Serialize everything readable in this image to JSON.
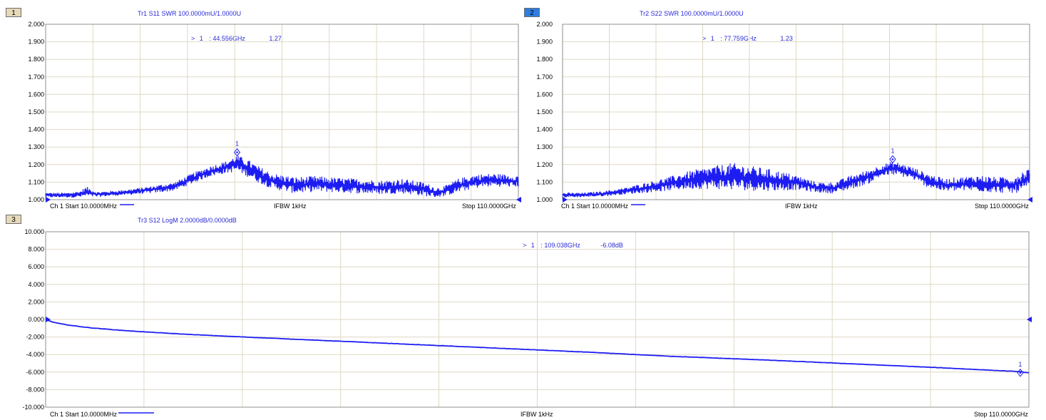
{
  "colors": {
    "trace": "#1d1df2",
    "grid": "#ded8c4",
    "frame": "#8f8f8f",
    "text_blue": "#2a2ad8"
  },
  "footers": {
    "start": "Ch 1 Start 10.0000MHz",
    "ifbw": "IFBW 1kHz",
    "stop": "Stop 110.0000GHz"
  },
  "chart_data": [
    {
      "type": "line",
      "channel_tag": "1",
      "title": "Tr1 S11 SWR 100.0000mU/1.0000U",
      "x_unit": "GHz",
      "xlim": [
        0.01,
        110.0
      ],
      "ylim": [
        1.0,
        2.0
      ],
      "yticks": [
        "2.000",
        "1.900",
        "1.800",
        "1.700",
        "1.600",
        "1.500",
        "1.400",
        "1.300",
        "1.200",
        "1.100",
        "1.000"
      ],
      "grid": true,
      "marker": {
        "id": "1",
        "arrow": ">",
        "freq": "44.556GHz",
        "value": "1.27",
        "x": 44.556,
        "y": 1.27
      },
      "envelope": {
        "x": [
          0,
          5,
          8,
          9.5,
          12,
          18,
          24,
          30,
          34,
          38,
          42,
          44.5,
          47,
          50,
          53,
          58,
          63,
          68,
          73,
          78,
          83,
          88,
          91,
          93,
          96,
          100,
          104,
          110
        ],
        "low": [
          1.012,
          1.012,
          1.012,
          1.015,
          1.015,
          1.025,
          1.035,
          1.05,
          1.09,
          1.13,
          1.15,
          1.16,
          1.13,
          1.09,
          1.06,
          1.035,
          1.045,
          1.04,
          1.035,
          1.03,
          1.035,
          1.02,
          1.012,
          1.02,
          1.04,
          1.065,
          1.075,
          1.07
        ],
        "high": [
          1.04,
          1.04,
          1.05,
          1.075,
          1.045,
          1.055,
          1.075,
          1.1,
          1.15,
          1.19,
          1.22,
          1.255,
          1.23,
          1.185,
          1.15,
          1.13,
          1.135,
          1.125,
          1.12,
          1.11,
          1.12,
          1.1,
          1.07,
          1.08,
          1.12,
          1.145,
          1.15,
          1.14
        ]
      }
    },
    {
      "type": "line",
      "channel_tag": "2",
      "title": "Tr2 S22 SWR 100.0000mU/1.0000U",
      "x_unit": "GHz",
      "xlim": [
        0.01,
        110.0
      ],
      "ylim": [
        1.0,
        2.0
      ],
      "yticks": [
        "2.000",
        "1.900",
        "1.800",
        "1.700",
        "1.600",
        "1.500",
        "1.400",
        "1.300",
        "1.200",
        "1.100",
        "1.000"
      ],
      "grid": true,
      "marker": {
        "id": "1",
        "arrow": ">",
        "freq": "77.759GHz",
        "value": "1.23",
        "x": 77.759,
        "y": 1.23
      },
      "envelope": {
        "x": [
          0,
          5,
          10,
          15,
          20,
          25,
          30,
          35,
          40,
          45,
          50,
          55,
          60,
          64,
          68,
          72,
          75,
          78,
          82,
          86,
          90,
          94,
          98,
          102,
          106,
          110
        ],
        "low": [
          1.012,
          1.014,
          1.02,
          1.03,
          1.04,
          1.05,
          1.06,
          1.06,
          1.055,
          1.05,
          1.05,
          1.055,
          1.04,
          1.035,
          1.06,
          1.09,
          1.13,
          1.14,
          1.12,
          1.07,
          1.045,
          1.05,
          1.045,
          1.04,
          1.035,
          1.05
        ],
        "high": [
          1.04,
          1.04,
          1.05,
          1.07,
          1.1,
          1.13,
          1.165,
          1.19,
          1.21,
          1.19,
          1.17,
          1.14,
          1.1,
          1.1,
          1.14,
          1.17,
          1.2,
          1.22,
          1.19,
          1.15,
          1.12,
          1.13,
          1.14,
          1.13,
          1.13,
          1.19
        ]
      }
    },
    {
      "type": "line",
      "channel_tag": "3",
      "title": "Tr3 S12 LogM 2.0000dB/0.0000dB",
      "x_unit": "GHz",
      "xlim": [
        0.01,
        110.0
      ],
      "ylim": [
        -10.0,
        10.0
      ],
      "yticks": [
        "10.000",
        "8.000",
        "6.000",
        "4.000",
        "2.000",
        "0.000",
        "-2.000",
        "-4.000",
        "-6.000",
        "-8.000",
        "-10.000"
      ],
      "grid": true,
      "marker": {
        "id": "1",
        "arrow": ">",
        "freq": "109.038GHz",
        "value": "-6.08dB",
        "x": 109.038,
        "y": -6.08
      },
      "curve": {
        "x": [
          0.01,
          0.5,
          1,
          2,
          3,
          5,
          8,
          10,
          15,
          20,
          30,
          40,
          50,
          60,
          70,
          80,
          90,
          100,
          109,
          110
        ],
        "y": [
          0.0,
          -0.2,
          -0.35,
          -0.55,
          -0.7,
          -0.95,
          -1.2,
          -1.35,
          -1.65,
          -1.9,
          -2.35,
          -2.8,
          -3.25,
          -3.7,
          -4.2,
          -4.6,
          -5.05,
          -5.5,
          -5.95,
          -6.1
        ]
      }
    }
  ]
}
